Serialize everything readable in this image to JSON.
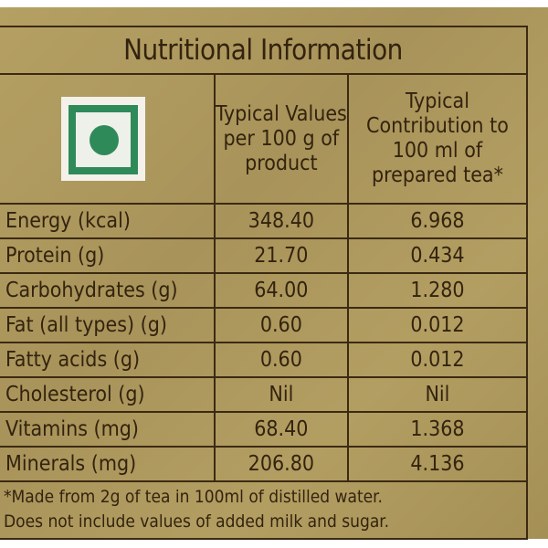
{
  "title": "Nutritional Information",
  "logo": {
    "icon": "green-dot-vegetarian-mark",
    "color": "#2f8a5a"
  },
  "columns": [
    "",
    "Typical Values per 100 g of product",
    "Typical Contribution to 100 ml of prepared tea*"
  ],
  "rows": [
    {
      "label": "Energy (kcal)",
      "per100g": "348.40",
      "per100ml": "6.968"
    },
    {
      "label": "Protein (g)",
      "per100g": "21.70",
      "per100ml": "0.434"
    },
    {
      "label": "Carbohydrates (g)",
      "per100g": "64.00",
      "per100ml": "1.280"
    },
    {
      "label": "Fat (all types) (g)",
      "per100g": "0.60",
      "per100ml": "0.012"
    },
    {
      "label": "Fatty acids (g)",
      "per100g": "0.60",
      "per100ml": "0.012"
    },
    {
      "label": "Cholesterol (g)",
      "per100g": "Nil",
      "per100ml": "Nil"
    },
    {
      "label": "Vitamins (mg)",
      "per100g": "68.40",
      "per100ml": "1.368"
    },
    {
      "label": "Minerals (mg)",
      "per100g": "206.80",
      "per100ml": "4.136"
    }
  ],
  "footnote": {
    "line1": "*Made from 2g of tea in 100ml of distilled water.",
    "line2": "Does not include values of added milk and sugar."
  },
  "colors": {
    "background": "#b09a5c",
    "text": "#33230e"
  }
}
